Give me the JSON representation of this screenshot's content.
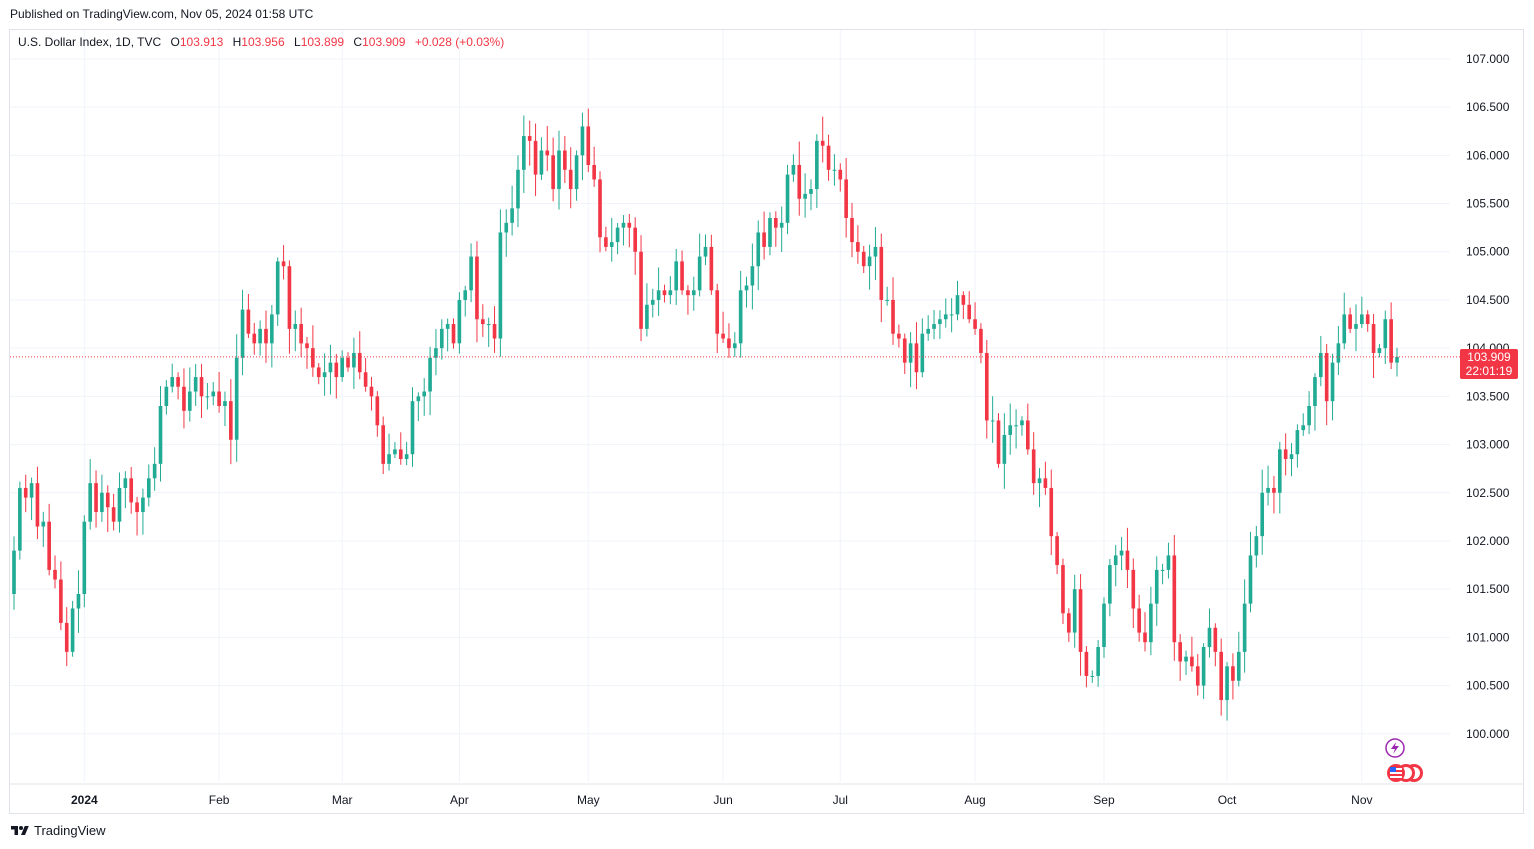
{
  "header": {
    "published": "Published on TradingView.com, Nov 05, 2024 01:58 UTC"
  },
  "legend": {
    "symbol": "U.S. Dollar Index, 1D, TVC",
    "open_label": "O",
    "open": "103.913",
    "high_label": "H",
    "high": "103.956",
    "low_label": "L",
    "low": "103.899",
    "close_label": "C",
    "close": "103.909",
    "change": "+0.028 (+0.03%)"
  },
  "price_badge": {
    "price": "103.909",
    "countdown": "22:01:19"
  },
  "footer": {
    "brand": "TradingView"
  },
  "colors": {
    "up": "#22ab94",
    "down": "#f23645",
    "grid": "#f0f3fa",
    "axis_text": "#131722",
    "price_line": "#f23645"
  },
  "icons": [
    "tradingview-logo-icon",
    "lightning-icon",
    "us-flag-icon"
  ],
  "chart_data": {
    "type": "candlestick",
    "title": "U.S. Dollar Index",
    "xlabel": "",
    "ylabel": "",
    "ylim": [
      99.5,
      107.3
    ],
    "y_ticks": [
      "107.000",
      "106.500",
      "106.000",
      "105.500",
      "105.000",
      "104.500",
      "104.000",
      "103.500",
      "103.000",
      "102.500",
      "102.000",
      "101.500",
      "101.000",
      "100.500",
      "100.000"
    ],
    "y_tick_values": [
      107.0,
      106.5,
      106.0,
      105.5,
      105.0,
      104.5,
      104.0,
      103.5,
      103.0,
      102.5,
      102.0,
      101.5,
      101.0,
      100.5,
      100.0
    ],
    "x_ticks": [
      {
        "label": "2024",
        "index": 12
      },
      {
        "label": "Feb",
        "index": 35
      },
      {
        "label": "Mar",
        "index": 56
      },
      {
        "label": "Apr",
        "index": 76
      },
      {
        "label": "May",
        "index": 98
      },
      {
        "label": "Jun",
        "index": 121
      },
      {
        "label": "Jul",
        "index": 141
      },
      {
        "label": "Aug",
        "index": 164
      },
      {
        "label": "Sep",
        "index": 186
      },
      {
        "label": "Oct",
        "index": 207
      },
      {
        "label": "Nov",
        "index": 230
      }
    ],
    "current_price": 103.909,
    "grid": true,
    "closes": [
      101.9,
      102.55,
      102.45,
      102.6,
      102.15,
      102.2,
      101.7,
      101.6,
      101.15,
      100.85,
      101.3,
      101.45,
      102.2,
      102.6,
      102.3,
      102.5,
      102.35,
      102.2,
      102.55,
      102.65,
      102.4,
      102.3,
      102.45,
      102.65,
      102.8,
      103.4,
      103.6,
      103.7,
      103.6,
      103.35,
      103.55,
      103.7,
      103.5,
      103.5,
      103.55,
      103.4,
      103.45,
      103.05,
      103.9,
      104.4,
      104.15,
      104.05,
      104.2,
      104.05,
      104.35,
      104.9,
      104.85,
      104.2,
      104.25,
      104.05,
      104.0,
      103.8,
      103.7,
      103.75,
      103.85,
      103.7,
      103.9,
      103.8,
      103.95,
      103.75,
      103.6,
      103.5,
      103.2,
      102.8,
      102.9,
      102.95,
      102.85,
      102.9,
      103.45,
      103.5,
      103.55,
      103.9,
      104.0,
      104.2,
      104.25,
      104.05,
      104.5,
      104.6,
      104.95,
      104.3,
      104.25,
      104.25,
      104.1,
      105.2,
      105.3,
      105.45,
      105.85,
      106.2,
      106.15,
      105.8,
      106.05,
      106.0,
      105.65,
      106.05,
      105.85,
      105.65,
      106.0,
      106.3,
      105.9,
      105.75,
      105.15,
      105.05,
      105.1,
      105.25,
      105.3,
      105.25,
      105.0,
      104.2,
      104.45,
      104.5,
      104.6,
      104.55,
      104.6,
      104.9,
      104.6,
      104.55,
      104.6,
      104.95,
      105.05,
      104.6,
      104.15,
      104.1,
      104.0,
      104.05,
      104.6,
      104.65,
      104.85,
      105.2,
      105.05,
      105.35,
      105.25,
      105.3,
      105.8,
      105.9,
      105.55,
      105.6,
      105.65,
      106.15,
      106.1,
      105.85,
      105.85,
      105.75,
      105.35,
      105.1,
      105.0,
      104.85,
      104.95,
      105.05,
      104.5,
      104.5,
      104.15,
      104.1,
      103.85,
      104.05,
      103.75,
      104.15,
      104.2,
      104.25,
      104.3,
      104.35,
      104.35,
      104.55,
      104.45,
      104.3,
      104.2,
      103.95,
      103.25,
      103.25,
      102.8,
      103.1,
      103.2,
      103.2,
      103.25,
      102.95,
      102.6,
      102.65,
      102.55,
      102.05,
      101.75,
      101.25,
      101.05,
      101.5,
      100.85,
      100.6,
      100.6,
      100.9,
      101.35,
      101.75,
      101.85,
      101.9,
      101.7,
      101.3,
      101.05,
      100.95,
      101.35,
      101.7,
      101.7,
      101.85,
      100.95,
      100.75,
      100.8,
      100.7,
      100.5,
      100.9,
      101.1,
      100.85,
      100.35,
      100.7,
      100.55,
      100.85,
      101.35,
      101.85,
      102.05,
      102.5,
      102.55,
      102.5,
      102.95,
      102.85,
      102.9,
      103.15,
      103.2,
      103.4,
      103.7,
      103.95,
      103.45,
      103.85,
      104.05,
      104.35,
      104.2,
      104.25,
      104.35,
      104.25,
      103.95,
      104.0,
      104.3,
      103.85,
      103.909
    ],
    "candles_note": "OHLC derived from closes; opens equal previous close"
  }
}
